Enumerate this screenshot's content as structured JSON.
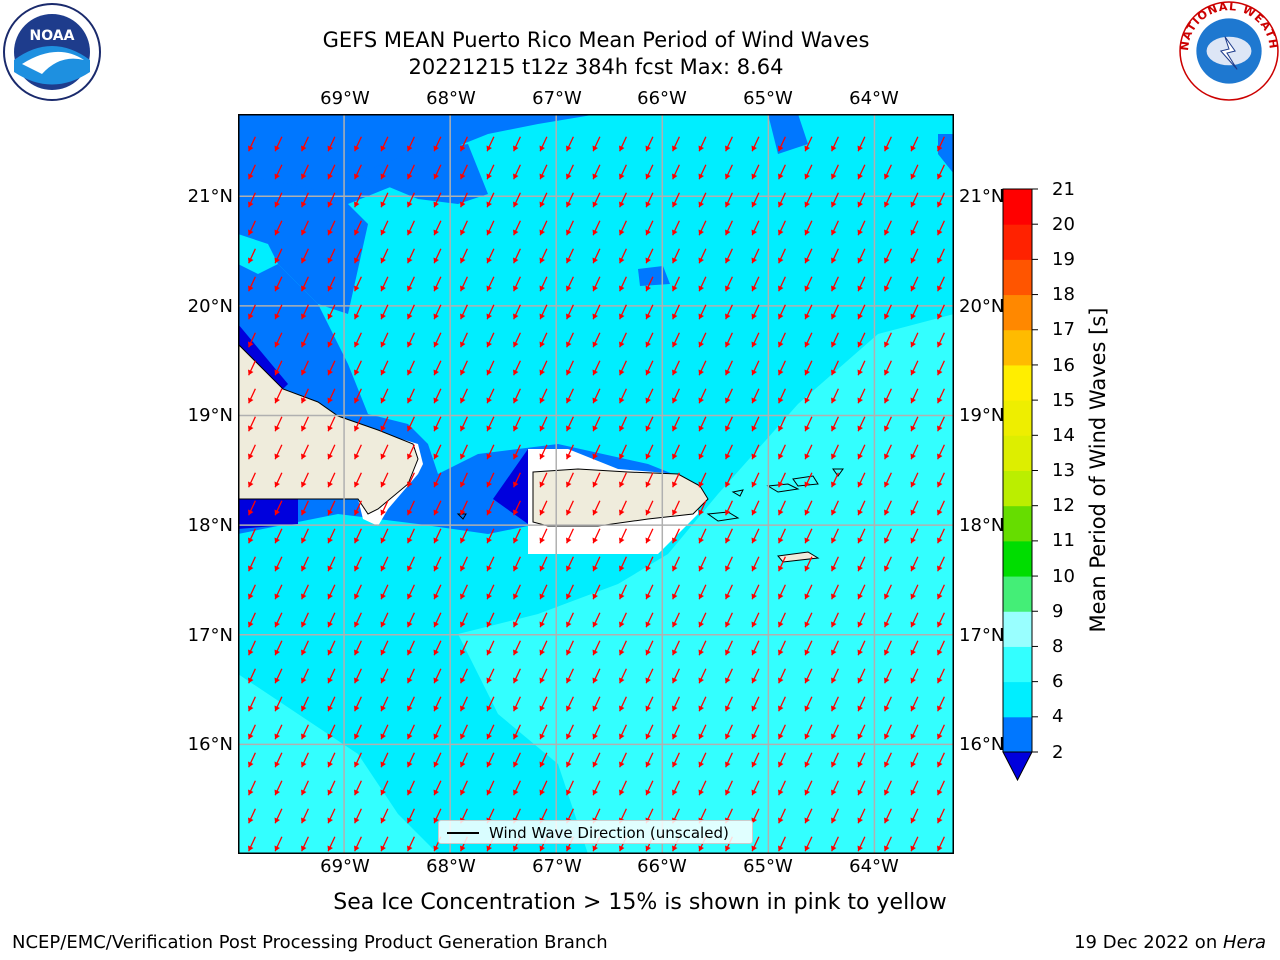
{
  "header": {
    "title_line1": "GEFS MEAN Puerto Rico Mean Period of Wind Waves",
    "title_line2": "20221215 t12z 384h fcst   Max: 8.64"
  },
  "logos": {
    "left": "NOAA",
    "right": "NATIONAL WEATHER SERVICE"
  },
  "axes": {
    "x_ticks": [
      "69°W",
      "68°W",
      "67°W",
      "66°W",
      "65°W",
      "64°W"
    ],
    "y_ticks": [
      "21°N",
      "20°N",
      "19°N",
      "18°N",
      "17°N",
      "16°N"
    ]
  },
  "map": {
    "lon_range": [
      -70.0,
      -63.25
    ],
    "lat_range": [
      15.0,
      21.75
    ],
    "land_color": "#efecdc",
    "arrow_color": "#ff0000",
    "arrow_dir_deg_approx": 245,
    "regions": {
      "dominant_period_s": "6-8 (cyan)",
      "southeast_period_s": "8-9 (light cyan)",
      "near_coast_period_s": "2-4 (blue)"
    }
  },
  "legend": {
    "label": "Wind Wave Direction (unscaled)"
  },
  "colorbar": {
    "label": "Mean Period of Wind Waves [s]",
    "ticks": [
      "21",
      "20",
      "19",
      "18",
      "17",
      "16",
      "15",
      "14",
      "13",
      "12",
      "11",
      "10",
      "9",
      "8",
      "6",
      "4",
      "2"
    ],
    "bins": [
      {
        "range": [
          0,
          2
        ],
        "color": "#0000dd"
      },
      {
        "range": [
          2,
          4
        ],
        "color": "#0077ff"
      },
      {
        "range": [
          4,
          6
        ],
        "color": "#00eeff"
      },
      {
        "range": [
          6,
          8
        ],
        "color": "#33ffff"
      },
      {
        "range": [
          8,
          9
        ],
        "color": "#99ffff"
      },
      {
        "range": [
          9,
          10
        ],
        "color": "#44ee77"
      },
      {
        "range": [
          10,
          11
        ],
        "color": "#00dd00"
      },
      {
        "range": [
          11,
          12
        ],
        "color": "#66dd00"
      },
      {
        "range": [
          12,
          13
        ],
        "color": "#bbee00"
      },
      {
        "range": [
          13,
          14
        ],
        "color": "#ddee00"
      },
      {
        "range": [
          14,
          15
        ],
        "color": "#eeee00"
      },
      {
        "range": [
          15,
          16
        ],
        "color": "#ffee00"
      },
      {
        "range": [
          16,
          17
        ],
        "color": "#ffbb00"
      },
      {
        "range": [
          17,
          18
        ],
        "color": "#ff8800"
      },
      {
        "range": [
          18,
          19
        ],
        "color": "#ff5500"
      },
      {
        "range": [
          19,
          20
        ],
        "color": "#ff2200"
      },
      {
        "range": [
          20,
          21
        ],
        "color": "#ff0000"
      }
    ]
  },
  "note": "Sea Ice Concentration > 15% is shown in pink to yellow",
  "footer": {
    "left": "NCEP/EMC/Verification Post Processing Product Generation Branch",
    "right_prefix": "19 Dec 2022 on ",
    "right_host": "Hera"
  }
}
